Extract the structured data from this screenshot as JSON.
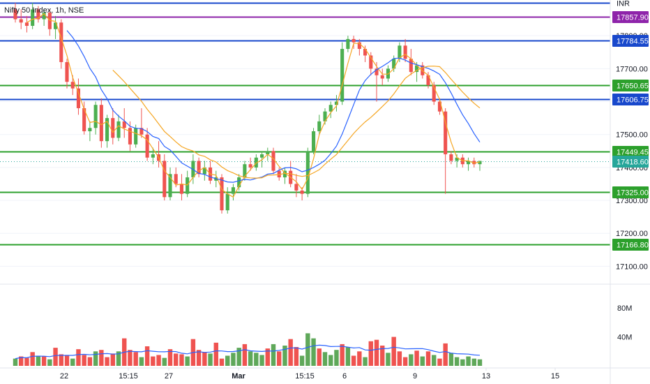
{
  "title": "Nifty 50 Index, 1h, NSE",
  "currency": "INR",
  "colors": {
    "up": "#4caf50",
    "down": "#ef5350",
    "up_vol": "#5fa85a",
    "down_vol": "#ef5350",
    "blue": "#1848cc",
    "green": "#2ca02c",
    "purple": "#8e24aa",
    "teal": "#26a69a",
    "ma_fast": "#2962ff",
    "ma_slow": "#f5a623",
    "ma_short": "#f5a623",
    "grid": "#f0f3fa",
    "axis": "#e0e3eb",
    "text": "#131722"
  },
  "chart_data": {
    "type": "candlestick",
    "price_axis": {
      "ticks": [
        "17800.00",
        "17700.00",
        "17600.00",
        "17500.00",
        "17400.00",
        "17300.00",
        "17200.00",
        "17100.00"
      ],
      "range": [
        17050,
        17900
      ]
    },
    "volume_axis": {
      "ticks": [
        "80M",
        "40M"
      ],
      "range": [
        0,
        110
      ]
    },
    "x_axis": {
      "ticks": [
        "22",
        "15:15",
        "27",
        "Mar",
        "15:15",
        "6",
        "9",
        "13",
        "15"
      ]
    },
    "levels": [
      {
        "value": 17900,
        "color": "blue",
        "label": "INR"
      },
      {
        "value": 17857.9,
        "color": "purple",
        "label": "17857.90"
      },
      {
        "value": 17784.55,
        "color": "blue",
        "label": "17784.55"
      },
      {
        "value": 17650.65,
        "color": "green",
        "label": "17650.65"
      },
      {
        "value": 17606.75,
        "color": "blue",
        "label": "17606.75"
      },
      {
        "value": 17449.45,
        "color": "green",
        "label": "17449.45"
      },
      {
        "value": 17418.6,
        "color": "teal",
        "label": "17418.60",
        "dotted": true
      },
      {
        "value": 17325.0,
        "color": "green",
        "label": "17325.00"
      },
      {
        "value": 17166.8,
        "color": "green",
        "label": "17166.80"
      }
    ],
    "candles": [
      [
        17880,
        17900,
        17840,
        17850
      ],
      [
        17850,
        17880,
        17820,
        17840
      ],
      [
        17840,
        17860,
        17810,
        17830
      ],
      [
        17830,
        17900,
        17820,
        17880
      ],
      [
        17880,
        17890,
        17840,
        17850
      ],
      [
        17850,
        17880,
        17830,
        17870
      ],
      [
        17870,
        17880,
        17800,
        17820
      ],
      [
        17820,
        17860,
        17790,
        17840
      ],
      [
        17840,
        17850,
        17700,
        17720
      ],
      [
        17720,
        17730,
        17640,
        17660
      ],
      [
        17660,
        17680,
        17620,
        17640
      ],
      [
        17640,
        17670,
        17560,
        17580
      ],
      [
        17580,
        17600,
        17500,
        17510
      ],
      [
        17510,
        17540,
        17480,
        17520
      ],
      [
        17520,
        17600,
        17500,
        17590
      ],
      [
        17590,
        17610,
        17460,
        17480
      ],
      [
        17480,
        17560,
        17460,
        17550
      ],
      [
        17550,
        17580,
        17470,
        17490
      ],
      [
        17490,
        17560,
        17480,
        17540
      ],
      [
        17540,
        17580,
        17490,
        17520
      ],
      [
        17520,
        17540,
        17450,
        17470
      ],
      [
        17470,
        17530,
        17460,
        17520
      ],
      [
        17520,
        17580,
        17490,
        17500
      ],
      [
        17500,
        17520,
        17420,
        17430
      ],
      [
        17430,
        17460,
        17410,
        17440
      ],
      [
        17440,
        17480,
        17400,
        17420
      ],
      [
        17420,
        17440,
        17300,
        17310
      ],
      [
        17310,
        17400,
        17300,
        17380
      ],
      [
        17380,
        17400,
        17340,
        17350
      ],
      [
        17350,
        17380,
        17300,
        17320
      ],
      [
        17320,
        17390,
        17310,
        17370
      ],
      [
        17370,
        17440,
        17350,
        17420
      ],
      [
        17420,
        17430,
        17370,
        17380
      ],
      [
        17380,
        17420,
        17360,
        17400
      ],
      [
        17400,
        17420,
        17350,
        17360
      ],
      [
        17360,
        17390,
        17340,
        17370
      ],
      [
        17370,
        17380,
        17260,
        17270
      ],
      [
        17270,
        17340,
        17260,
        17320
      ],
      [
        17320,
        17350,
        17300,
        17340
      ],
      [
        17340,
        17380,
        17330,
        17370
      ],
      [
        17370,
        17420,
        17360,
        17410
      ],
      [
        17410,
        17430,
        17390,
        17400
      ],
      [
        17400,
        17440,
        17390,
        17430
      ],
      [
        17430,
        17450,
        17400,
        17440
      ],
      [
        17440,
        17460,
        17420,
        17450
      ],
      [
        17450,
        17460,
        17380,
        17390
      ],
      [
        17390,
        17400,
        17360,
        17370
      ],
      [
        17370,
        17400,
        17350,
        17390
      ],
      [
        17390,
        17420,
        17340,
        17350
      ],
      [
        17350,
        17380,
        17310,
        17330
      ],
      [
        17330,
        17340,
        17300,
        17320
      ],
      [
        17320,
        17460,
        17310,
        17450
      ],
      [
        17450,
        17520,
        17440,
        17510
      ],
      [
        17510,
        17560,
        17500,
        17540
      ],
      [
        17540,
        17580,
        17530,
        17570
      ],
      [
        17570,
        17600,
        17550,
        17590
      ],
      [
        17590,
        17620,
        17570,
        17600
      ],
      [
        17600,
        17780,
        17590,
        17760
      ],
      [
        17760,
        17800,
        17750,
        17790
      ],
      [
        17790,
        17800,
        17760,
        17780
      ],
      [
        17780,
        17790,
        17740,
        17760
      ],
      [
        17760,
        17770,
        17720,
        17740
      ],
      [
        17740,
        17750,
        17680,
        17700
      ],
      [
        17700,
        17720,
        17600,
        17680
      ],
      [
        17680,
        17700,
        17650,
        17670
      ],
      [
        17670,
        17710,
        17660,
        17700
      ],
      [
        17700,
        17740,
        17690,
        17730
      ],
      [
        17730,
        17780,
        17720,
        17770
      ],
      [
        17770,
        17790,
        17720,
        17730
      ],
      [
        17730,
        17760,
        17680,
        17690
      ],
      [
        17690,
        17720,
        17660,
        17710
      ],
      [
        17710,
        17720,
        17670,
        17680
      ],
      [
        17680,
        17690,
        17640,
        17650
      ],
      [
        17650,
        17660,
        17590,
        17600
      ],
      [
        17600,
        17610,
        17560,
        17570
      ],
      [
        17570,
        17580,
        17320,
        17440
      ],
      [
        17440,
        17450,
        17410,
        17420
      ],
      [
        17420,
        17440,
        17400,
        17430
      ],
      [
        17430,
        17440,
        17400,
        17410
      ],
      [
        17410,
        17430,
        17390,
        17420
      ],
      [
        17420,
        17430,
        17400,
        17410
      ],
      [
        17410,
        17420,
        17390,
        17420
      ]
    ],
    "volumes": [
      [
        10,
        "up"
      ],
      [
        13,
        "down"
      ],
      [
        11,
        "down"
      ],
      [
        19,
        "down"
      ],
      [
        14,
        "up"
      ],
      [
        13,
        "down"
      ],
      [
        9,
        "up"
      ],
      [
        25,
        "down"
      ],
      [
        16,
        "down"
      ],
      [
        15,
        "down"
      ],
      [
        10,
        "up"
      ],
      [
        23,
        "down"
      ],
      [
        15,
        "down"
      ],
      [
        12,
        "down"
      ],
      [
        20,
        "up"
      ],
      [
        22,
        "down"
      ],
      [
        12,
        "down"
      ],
      [
        17,
        "down"
      ],
      [
        20,
        "up"
      ],
      [
        38,
        "down"
      ],
      [
        22,
        "down"
      ],
      [
        19,
        "down"
      ],
      [
        12,
        "up"
      ],
      [
        27,
        "down"
      ],
      [
        13,
        "down"
      ],
      [
        15,
        "down"
      ],
      [
        11,
        "up"
      ],
      [
        23,
        "down"
      ],
      [
        17,
        "down"
      ],
      [
        16,
        "down"
      ],
      [
        13,
        "up"
      ],
      [
        37,
        "down"
      ],
      [
        22,
        "down"
      ],
      [
        19,
        "down"
      ],
      [
        17,
        "up"
      ],
      [
        32,
        "down"
      ],
      [
        10,
        "down"
      ],
      [
        14,
        "up"
      ],
      [
        18,
        "up"
      ],
      [
        25,
        "up"
      ],
      [
        30,
        "down"
      ],
      [
        20,
        "up"
      ],
      [
        18,
        "up"
      ],
      [
        15,
        "up"
      ],
      [
        24,
        "down"
      ],
      [
        30,
        "up"
      ],
      [
        20,
        "down"
      ],
      [
        28,
        "up"
      ],
      [
        37,
        "down"
      ],
      [
        26,
        "down"
      ],
      [
        14,
        "up"
      ],
      [
        45,
        "up"
      ],
      [
        38,
        "up"
      ],
      [
        24,
        "down"
      ],
      [
        19,
        "up"
      ],
      [
        15,
        "up"
      ],
      [
        22,
        "up"
      ],
      [
        30,
        "down"
      ],
      [
        26,
        "up"
      ],
      [
        14,
        "down"
      ],
      [
        20,
        "down"
      ],
      [
        12,
        "up"
      ],
      [
        34,
        "down"
      ],
      [
        36,
        "down"
      ],
      [
        28,
        "down"
      ],
      [
        18,
        "up"
      ],
      [
        40,
        "down"
      ],
      [
        20,
        "down"
      ],
      [
        12,
        "down"
      ],
      [
        16,
        "up"
      ],
      [
        21,
        "down"
      ],
      [
        13,
        "up"
      ],
      [
        20,
        "down"
      ],
      [
        15,
        "up"
      ],
      [
        10,
        "down"
      ],
      [
        31,
        "down"
      ],
      [
        18,
        "up"
      ],
      [
        12,
        "up"
      ],
      [
        9,
        "up"
      ],
      [
        13,
        "up"
      ],
      [
        10,
        "up"
      ],
      [
        9,
        "up"
      ]
    ]
  }
}
